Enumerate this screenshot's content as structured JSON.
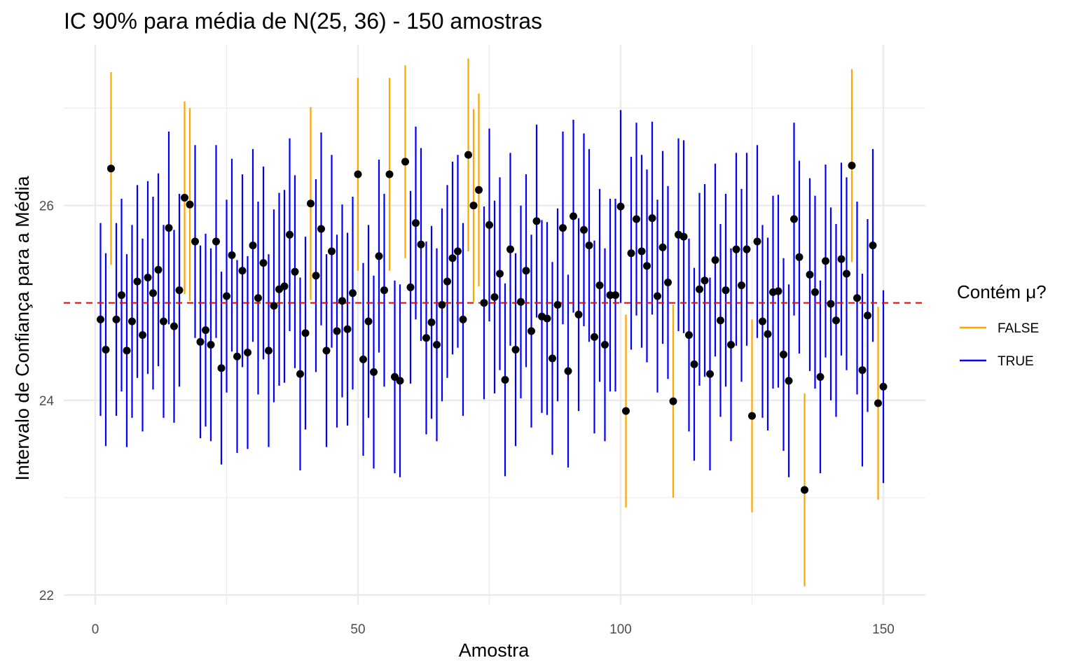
{
  "chart_data": {
    "type": "errorbar",
    "title": "IC 90% para média de N(25, 36) - 150 amostras",
    "xlabel": "Amostra",
    "ylabel": "Intervalo de Confiança para a Média",
    "xlim": [
      -6,
      158
    ],
    "ylim": [
      21.9,
      27.65
    ],
    "xticks": [
      0,
      50,
      100,
      150
    ],
    "yticks": [
      22,
      24,
      26
    ],
    "grid": true,
    "reference_line": {
      "y": 25,
      "color": "#ff0000",
      "style": "dashed"
    },
    "legend": {
      "title": "Contém μ?",
      "position": "right",
      "entries": [
        {
          "label": "FALSE",
          "color": "#ffa500"
        },
        {
          "label": "TRUE",
          "color": "#0000ff"
        }
      ]
    },
    "half_width": 0.99,
    "x": [
      1,
      2,
      3,
      4,
      5,
      6,
      7,
      8,
      9,
      10,
      11,
      12,
      13,
      14,
      15,
      16,
      17,
      18,
      19,
      20,
      21,
      22,
      23,
      24,
      25,
      26,
      27,
      28,
      29,
      30,
      31,
      32,
      33,
      34,
      35,
      36,
      37,
      38,
      39,
      40,
      41,
      42,
      43,
      44,
      45,
      46,
      47,
      48,
      49,
      50,
      51,
      52,
      53,
      54,
      55,
      56,
      57,
      58,
      59,
      60,
      61,
      62,
      63,
      64,
      65,
      66,
      67,
      68,
      69,
      70,
      71,
      72,
      73,
      74,
      75,
      76,
      77,
      78,
      79,
      80,
      81,
      82,
      83,
      84,
      85,
      86,
      87,
      88,
      89,
      90,
      91,
      92,
      93,
      94,
      95,
      96,
      97,
      98,
      99,
      100,
      101,
      102,
      103,
      104,
      105,
      106,
      107,
      108,
      109,
      110,
      111,
      112,
      113,
      114,
      115,
      116,
      117,
      118,
      119,
      120,
      121,
      122,
      123,
      124,
      125,
      126,
      127,
      128,
      129,
      130,
      131,
      132,
      133,
      134,
      135,
      136,
      137,
      138,
      139,
      140,
      141,
      142,
      143,
      144,
      145,
      146,
      147,
      148,
      149,
      150
    ],
    "means": [
      24.83,
      24.52,
      26.38,
      24.83,
      25.08,
      24.51,
      24.81,
      25.22,
      24.67,
      25.26,
      25.1,
      25.34,
      24.81,
      25.77,
      24.76,
      25.13,
      26.08,
      26.01,
      25.63,
      24.6,
      24.72,
      24.57,
      25.63,
      24.33,
      25.07,
      25.49,
      24.45,
      25.33,
      24.49,
      25.59,
      25.05,
      25.41,
      24.51,
      24.97,
      25.14,
      25.17,
      25.7,
      25.32,
      24.27,
      24.69,
      26.02,
      25.28,
      25.76,
      24.51,
      25.53,
      24.71,
      25.02,
      24.73,
      25.1,
      26.32,
      24.42,
      24.81,
      24.29,
      25.48,
      25.13,
      26.32,
      24.24,
      24.2,
      26.45,
      25.16,
      25.82,
      25.6,
      24.64,
      24.8,
      24.57,
      24.98,
      25.22,
      25.46,
      25.53,
      24.83,
      26.52,
      26.0,
      26.16,
      25.0,
      25.8,
      25.06,
      25.3,
      24.21,
      25.55,
      24.52,
      25.01,
      25.33,
      24.71,
      25.84,
      24.86,
      24.84,
      24.43,
      24.98,
      25.77,
      24.3,
      25.89,
      24.88,
      25.75,
      25.59,
      24.65,
      25.18,
      24.57,
      25.08,
      25.08,
      25.99,
      23.89,
      25.51,
      25.86,
      25.53,
      25.38,
      25.87,
      25.07,
      25.57,
      25.21,
      23.99,
      25.7,
      25.68,
      24.67,
      24.37,
      25.14,
      25.23,
      24.27,
      25.44,
      24.82,
      25.13,
      24.57,
      25.55,
      25.18,
      25.55,
      23.84,
      25.63,
      24.81,
      24.68,
      25.11,
      25.12,
      24.47,
      24.2,
      25.86,
      25.47,
      23.08,
      25.29,
      25.11,
      24.24,
      25.43,
      24.99,
      24.82,
      25.45,
      25.3,
      26.41,
      25.05,
      24.31,
      24.87,
      25.59,
      23.97,
      24.14
    ],
    "contains": [
      true,
      true,
      false,
      true,
      true,
      true,
      true,
      true,
      true,
      true,
      true,
      true,
      true,
      true,
      true,
      true,
      false,
      false,
      true,
      true,
      true,
      true,
      true,
      true,
      true,
      true,
      true,
      true,
      true,
      true,
      true,
      true,
      true,
      true,
      true,
      true,
      true,
      true,
      true,
      true,
      false,
      true,
      true,
      true,
      true,
      true,
      true,
      true,
      true,
      false,
      true,
      true,
      true,
      true,
      true,
      false,
      true,
      true,
      false,
      true,
      true,
      true,
      true,
      true,
      true,
      true,
      true,
      true,
      true,
      true,
      false,
      false,
      false,
      true,
      true,
      true,
      true,
      true,
      true,
      true,
      true,
      true,
      true,
      true,
      true,
      true,
      true,
      true,
      true,
      true,
      true,
      true,
      true,
      true,
      true,
      true,
      true,
      true,
      true,
      true,
      false,
      true,
      true,
      true,
      true,
      true,
      true,
      true,
      true,
      false,
      true,
      true,
      true,
      true,
      true,
      true,
      true,
      true,
      true,
      true,
      true,
      true,
      true,
      true,
      false,
      true,
      true,
      true,
      true,
      true,
      true,
      true,
      true,
      true,
      false,
      true,
      true,
      true,
      true,
      true,
      true,
      true,
      true,
      false,
      true,
      true,
      true,
      true,
      false,
      true
    ]
  }
}
